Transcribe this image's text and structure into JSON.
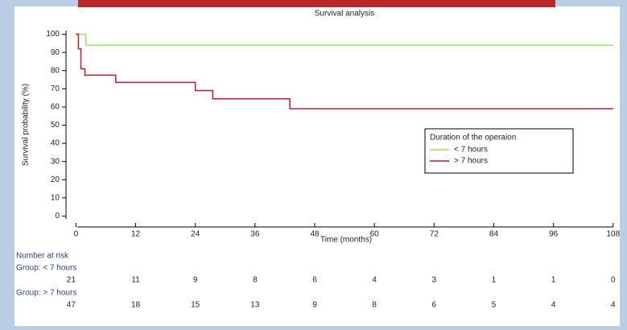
{
  "chart_data": {
    "type": "line",
    "step": "post",
    "title": "Survival analysis",
    "x_label": "Time (months)",
    "y_label": "Survival probability (%)",
    "xlim": [
      -2,
      109
    ],
    "ylim": [
      -6,
      102
    ],
    "xticks": [
      0,
      12,
      24,
      36,
      48,
      60,
      72,
      84,
      96,
      108
    ],
    "yticks": [
      0,
      10,
      20,
      30,
      40,
      50,
      60,
      70,
      80,
      90,
      100
    ],
    "legend_title": "Duration of the operaion",
    "legend_position": "right",
    "series": [
      {
        "name": "< 7 hours",
        "color": "#9ae06a",
        "x": [
          0,
          2,
          108
        ],
        "values": [
          100,
          94,
          94
        ]
      },
      {
        "name": "> 7 hours",
        "color": "#c4182c",
        "x": [
          0,
          0.5,
          1,
          1.8,
          8,
          24,
          27.5,
          43,
          108
        ],
        "values": [
          100,
          92,
          81,
          77.5,
          73.5,
          69,
          64.5,
          59,
          59
        ]
      }
    ],
    "risk_table": {
      "title": "Number at risk",
      "groups": [
        {
          "name": "Group: < 7 hours",
          "values": [
            21,
            11,
            9,
            8,
            6,
            4,
            3,
            1,
            1,
            0
          ]
        },
        {
          "name": "Group: > 7 hours",
          "values": [
            47,
            18,
            15,
            13,
            9,
            8,
            6,
            5,
            4,
            4
          ]
        }
      ]
    }
  }
}
